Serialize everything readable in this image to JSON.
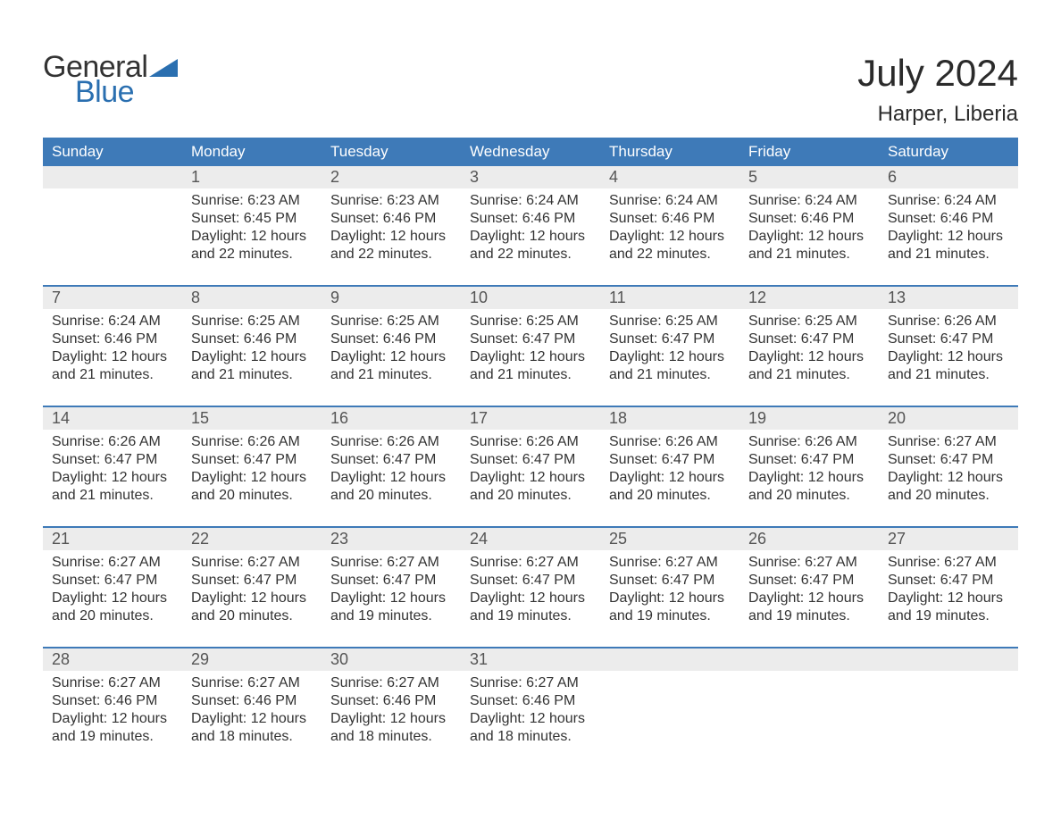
{
  "logo": {
    "word1": "General",
    "word2": "Blue",
    "triangle_color": "#2a6fb0",
    "text_dark": "#333333",
    "text_blue": "#2a6fb0"
  },
  "title": "July 2024",
  "location": "Harper, Liberia",
  "colors": {
    "header_bg": "#3e7ab8",
    "header_text": "#ffffff",
    "daynum_bg": "#ececec",
    "body_text": "#333333",
    "border": "#3e7ab8",
    "page_bg": "#ffffff"
  },
  "fonts": {
    "title_size": 42,
    "location_size": 24,
    "header_size": 17,
    "daynum_size": 18,
    "body_size": 16
  },
  "day_headers": [
    "Sunday",
    "Monday",
    "Tuesday",
    "Wednesday",
    "Thursday",
    "Friday",
    "Saturday"
  ],
  "weeks": [
    [
      null,
      {
        "n": "1",
        "sunrise": "Sunrise: 6:23 AM",
        "sunset": "Sunset: 6:45 PM",
        "d1": "Daylight: 12 hours",
        "d2": "and 22 minutes."
      },
      {
        "n": "2",
        "sunrise": "Sunrise: 6:23 AM",
        "sunset": "Sunset: 6:46 PM",
        "d1": "Daylight: 12 hours",
        "d2": "and 22 minutes."
      },
      {
        "n": "3",
        "sunrise": "Sunrise: 6:24 AM",
        "sunset": "Sunset: 6:46 PM",
        "d1": "Daylight: 12 hours",
        "d2": "and 22 minutes."
      },
      {
        "n": "4",
        "sunrise": "Sunrise: 6:24 AM",
        "sunset": "Sunset: 6:46 PM",
        "d1": "Daylight: 12 hours",
        "d2": "and 22 minutes."
      },
      {
        "n": "5",
        "sunrise": "Sunrise: 6:24 AM",
        "sunset": "Sunset: 6:46 PM",
        "d1": "Daylight: 12 hours",
        "d2": "and 21 minutes."
      },
      {
        "n": "6",
        "sunrise": "Sunrise: 6:24 AM",
        "sunset": "Sunset: 6:46 PM",
        "d1": "Daylight: 12 hours",
        "d2": "and 21 minutes."
      }
    ],
    [
      {
        "n": "7",
        "sunrise": "Sunrise: 6:24 AM",
        "sunset": "Sunset: 6:46 PM",
        "d1": "Daylight: 12 hours",
        "d2": "and 21 minutes."
      },
      {
        "n": "8",
        "sunrise": "Sunrise: 6:25 AM",
        "sunset": "Sunset: 6:46 PM",
        "d1": "Daylight: 12 hours",
        "d2": "and 21 minutes."
      },
      {
        "n": "9",
        "sunrise": "Sunrise: 6:25 AM",
        "sunset": "Sunset: 6:46 PM",
        "d1": "Daylight: 12 hours",
        "d2": "and 21 minutes."
      },
      {
        "n": "10",
        "sunrise": "Sunrise: 6:25 AM",
        "sunset": "Sunset: 6:47 PM",
        "d1": "Daylight: 12 hours",
        "d2": "and 21 minutes."
      },
      {
        "n": "11",
        "sunrise": "Sunrise: 6:25 AM",
        "sunset": "Sunset: 6:47 PM",
        "d1": "Daylight: 12 hours",
        "d2": "and 21 minutes."
      },
      {
        "n": "12",
        "sunrise": "Sunrise: 6:25 AM",
        "sunset": "Sunset: 6:47 PM",
        "d1": "Daylight: 12 hours",
        "d2": "and 21 minutes."
      },
      {
        "n": "13",
        "sunrise": "Sunrise: 6:26 AM",
        "sunset": "Sunset: 6:47 PM",
        "d1": "Daylight: 12 hours",
        "d2": "and 21 minutes."
      }
    ],
    [
      {
        "n": "14",
        "sunrise": "Sunrise: 6:26 AM",
        "sunset": "Sunset: 6:47 PM",
        "d1": "Daylight: 12 hours",
        "d2": "and 21 minutes."
      },
      {
        "n": "15",
        "sunrise": "Sunrise: 6:26 AM",
        "sunset": "Sunset: 6:47 PM",
        "d1": "Daylight: 12 hours",
        "d2": "and 20 minutes."
      },
      {
        "n": "16",
        "sunrise": "Sunrise: 6:26 AM",
        "sunset": "Sunset: 6:47 PM",
        "d1": "Daylight: 12 hours",
        "d2": "and 20 minutes."
      },
      {
        "n": "17",
        "sunrise": "Sunrise: 6:26 AM",
        "sunset": "Sunset: 6:47 PM",
        "d1": "Daylight: 12 hours",
        "d2": "and 20 minutes."
      },
      {
        "n": "18",
        "sunrise": "Sunrise: 6:26 AM",
        "sunset": "Sunset: 6:47 PM",
        "d1": "Daylight: 12 hours",
        "d2": "and 20 minutes."
      },
      {
        "n": "19",
        "sunrise": "Sunrise: 6:26 AM",
        "sunset": "Sunset: 6:47 PM",
        "d1": "Daylight: 12 hours",
        "d2": "and 20 minutes."
      },
      {
        "n": "20",
        "sunrise": "Sunrise: 6:27 AM",
        "sunset": "Sunset: 6:47 PM",
        "d1": "Daylight: 12 hours",
        "d2": "and 20 minutes."
      }
    ],
    [
      {
        "n": "21",
        "sunrise": "Sunrise: 6:27 AM",
        "sunset": "Sunset: 6:47 PM",
        "d1": "Daylight: 12 hours",
        "d2": "and 20 minutes."
      },
      {
        "n": "22",
        "sunrise": "Sunrise: 6:27 AM",
        "sunset": "Sunset: 6:47 PM",
        "d1": "Daylight: 12 hours",
        "d2": "and 20 minutes."
      },
      {
        "n": "23",
        "sunrise": "Sunrise: 6:27 AM",
        "sunset": "Sunset: 6:47 PM",
        "d1": "Daylight: 12 hours",
        "d2": "and 19 minutes."
      },
      {
        "n": "24",
        "sunrise": "Sunrise: 6:27 AM",
        "sunset": "Sunset: 6:47 PM",
        "d1": "Daylight: 12 hours",
        "d2": "and 19 minutes."
      },
      {
        "n": "25",
        "sunrise": "Sunrise: 6:27 AM",
        "sunset": "Sunset: 6:47 PM",
        "d1": "Daylight: 12 hours",
        "d2": "and 19 minutes."
      },
      {
        "n": "26",
        "sunrise": "Sunrise: 6:27 AM",
        "sunset": "Sunset: 6:47 PM",
        "d1": "Daylight: 12 hours",
        "d2": "and 19 minutes."
      },
      {
        "n": "27",
        "sunrise": "Sunrise: 6:27 AM",
        "sunset": "Sunset: 6:47 PM",
        "d1": "Daylight: 12 hours",
        "d2": "and 19 minutes."
      }
    ],
    [
      {
        "n": "28",
        "sunrise": "Sunrise: 6:27 AM",
        "sunset": "Sunset: 6:46 PM",
        "d1": "Daylight: 12 hours",
        "d2": "and 19 minutes."
      },
      {
        "n": "29",
        "sunrise": "Sunrise: 6:27 AM",
        "sunset": "Sunset: 6:46 PM",
        "d1": "Daylight: 12 hours",
        "d2": "and 18 minutes."
      },
      {
        "n": "30",
        "sunrise": "Sunrise: 6:27 AM",
        "sunset": "Sunset: 6:46 PM",
        "d1": "Daylight: 12 hours",
        "d2": "and 18 minutes."
      },
      {
        "n": "31",
        "sunrise": "Sunrise: 6:27 AM",
        "sunset": "Sunset: 6:46 PM",
        "d1": "Daylight: 12 hours",
        "d2": "and 18 minutes."
      },
      null,
      null,
      null
    ]
  ]
}
